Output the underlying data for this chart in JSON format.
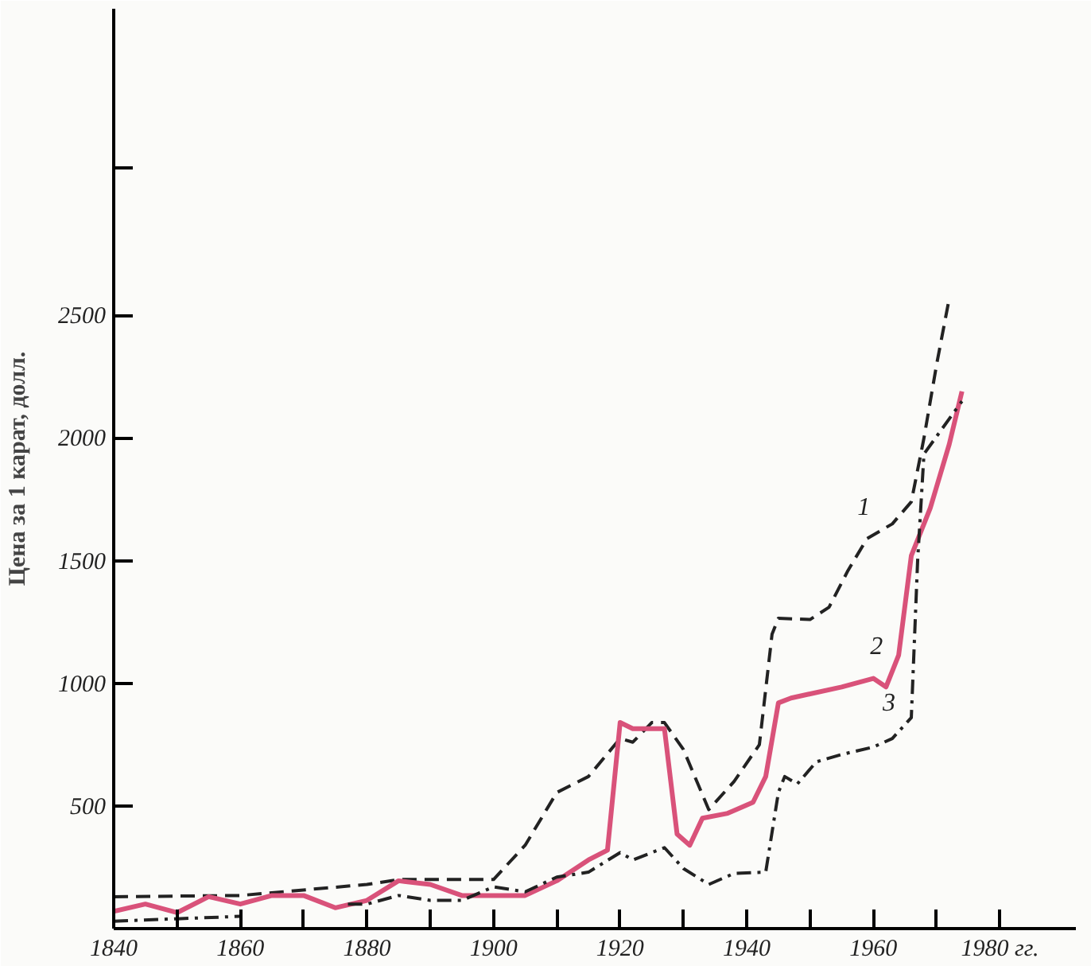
{
  "chart_data": {
    "type": "line",
    "ylabel": "Цена за 1 карат, долл.",
    "xlim": [
      1840,
      1992
    ],
    "ylim": [
      0,
      3750
    ],
    "xticks": [
      1840,
      {
        "value": 1850,
        "label": null
      },
      1860,
      {
        "value": 1870,
        "label": null
      },
      1880,
      {
        "value": 1890,
        "label": null
      },
      1900,
      {
        "value": 1910,
        "label": null
      },
      1920,
      {
        "value": 1930,
        "label": null
      },
      1940,
      {
        "value": 1950,
        "label": null
      },
      1960,
      {
        "value": 1970,
        "label": null
      },
      {
        "value": 1980,
        "label": "1980 гг."
      }
    ],
    "yticks": [
      500,
      1000,
      1500,
      2000,
      2500,
      {
        "value": 3100,
        "label": null
      }
    ],
    "grid": false,
    "series": [
      {
        "color": "#222222",
        "line_style": "dashed",
        "x": [
          1840,
          1860,
          1880,
          1885,
          1900,
          1905,
          1910,
          1915,
          1920,
          1922,
          1925,
          1927,
          1930,
          1934,
          1938,
          1942,
          1944,
          1945,
          1950,
          1953,
          1956,
          1959,
          1963,
          1966,
          1968,
          1970,
          1972
        ],
        "values": [
          130,
          135,
          180,
          200,
          200,
          340,
          555,
          620,
          775,
          760,
          840,
          840,
          730,
          485,
          600,
          750,
          1200,
          1265,
          1260,
          1310,
          1460,
          1590,
          1650,
          1740,
          2000,
          2300,
          2570
        ]
      },
      {
        "color": "#d9527a",
        "line_style": "solid",
        "x": [
          1840,
          1845,
          1850,
          1855,
          1860,
          1865,
          1870,
          1875,
          1880,
          1885,
          1890,
          1895,
          1900,
          1905,
          1910,
          1915,
          1918,
          1920,
          1922,
          1925,
          1927,
          1929,
          1931,
          1933,
          1937,
          1941,
          1943,
          1945,
          1947,
          1955,
          1960,
          1962,
          1964,
          1966,
          1969,
          1972,
          1974
        ],
        "values": [
          70,
          100,
          65,
          130,
          100,
          135,
          135,
          85,
          115,
          195,
          180,
          135,
          135,
          135,
          195,
          280,
          320,
          840,
          815,
          815,
          815,
          385,
          340,
          450,
          470,
          515,
          620,
          920,
          940,
          985,
          1020,
          985,
          1115,
          1520,
          1715,
          1975,
          2190
        ]
      },
      {
        "color": "#222222",
        "line_style": "dashdot",
        "x": [
          1840,
          1850,
          1860,
          1870,
          1877,
          1880,
          1885,
          1890,
          1895,
          1900,
          1905,
          1910,
          1915,
          1920,
          1922,
          1927,
          1930,
          1934,
          1938,
          1943,
          1945,
          1946,
          1948,
          1951,
          1955,
          1960,
          1963,
          1966,
          1967,
          1968,
          1974
        ],
        "values": [
          30,
          40,
          50,
          null,
          100,
          100,
          135,
          115,
          115,
          170,
          150,
          210,
          230,
          310,
          280,
          330,
          245,
          180,
          225,
          230,
          555,
          620,
          590,
          680,
          710,
          740,
          775,
          860,
          1500,
          1935,
          2150
        ]
      }
    ],
    "annotations": [
      {
        "text": "1",
        "x": 1961,
        "y": 1620
      },
      {
        "text": "2",
        "x": 1963,
        "y": 1050
      },
      {
        "text": "3",
        "x": 1965,
        "y": 820
      }
    ]
  }
}
